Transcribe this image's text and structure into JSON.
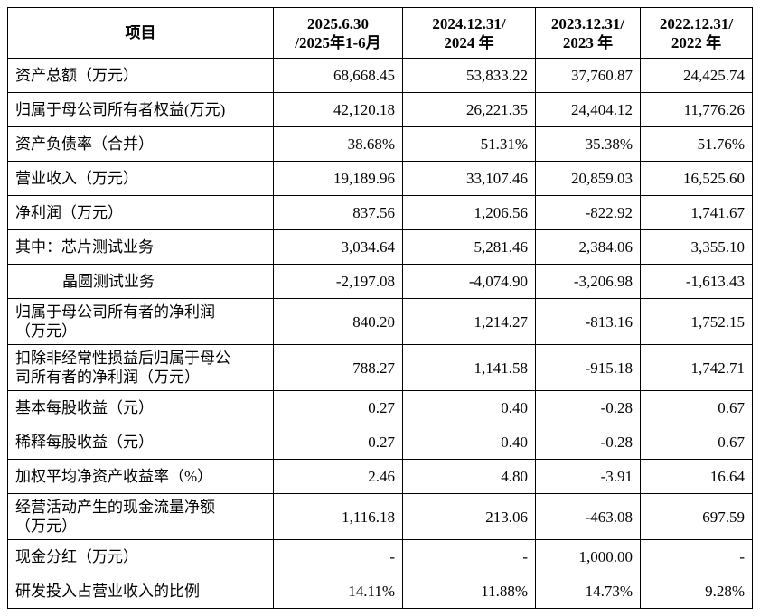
{
  "table": {
    "header": [
      [
        "项目"
      ],
      [
        "2025.6.30",
        "/2025年1-6月"
      ],
      [
        "2024.12.31/",
        "2024 年"
      ],
      [
        "2023.12.31/",
        "2023 年"
      ],
      [
        "2022.12.31/",
        "2022 年"
      ]
    ],
    "rows": [
      [
        [
          "资产总额（万元）"
        ],
        "68,668.45",
        "53,833.22",
        "37,760.87",
        "24,425.74"
      ],
      [
        [
          "归属于母公司所有者权益(万元)"
        ],
        "42,120.18",
        "26,221.35",
        "24,404.12",
        "11,776.26"
      ],
      [
        [
          "资产负债率（合并）"
        ],
        "38.68%",
        "51.31%",
        "35.38%",
        "51.76%"
      ],
      [
        [
          "营业收入（万元）"
        ],
        "19,189.96",
        "33,107.46",
        "20,859.03",
        "16,525.60"
      ],
      [
        [
          "净利润（万元）"
        ],
        "837.56",
        "1,206.56",
        "-822.92",
        "1,741.67"
      ],
      [
        [
          "其中：芯片测试业务"
        ],
        "3,034.64",
        "5,281.46",
        "2,384.06",
        "3,355.10"
      ],
      [
        [
          "晶圆测试业务"
        ],
        "-2,197.08",
        "-4,074.90",
        "-3,206.98",
        "-1,613.43"
      ],
      [
        [
          "归属于母公司所有者的净利润",
          "（万元）"
        ],
        "840.20",
        "1,214.27",
        "-813.16",
        "1,752.15"
      ],
      [
        [
          "扣除非经常性损益后归属于母公",
          "司所有者的净利润（万元）"
        ],
        "788.27",
        "1,141.58",
        "-915.18",
        "1,742.71"
      ],
      [
        [
          "基本每股收益（元）"
        ],
        "0.27",
        "0.40",
        "-0.28",
        "0.67"
      ],
      [
        [
          "稀释每股收益（元）"
        ],
        "0.27",
        "0.40",
        "-0.28",
        "0.67"
      ],
      [
        [
          "加权平均净资产收益率（%）"
        ],
        "2.46",
        "4.80",
        "-3.91",
        "16.64"
      ],
      [
        [
          "经营活动产生的现金流量净额",
          "（万元）"
        ],
        "1,116.18",
        "213.06",
        "-463.08",
        "697.59"
      ],
      [
        [
          "现金分红（万元）"
        ],
        "-",
        "-",
        "1,000.00",
        "-"
      ],
      [
        [
          "研发投入占营业收入的比例"
        ],
        "14.11%",
        "11.88%",
        "14.73%",
        "9.28%"
      ]
    ]
  }
}
